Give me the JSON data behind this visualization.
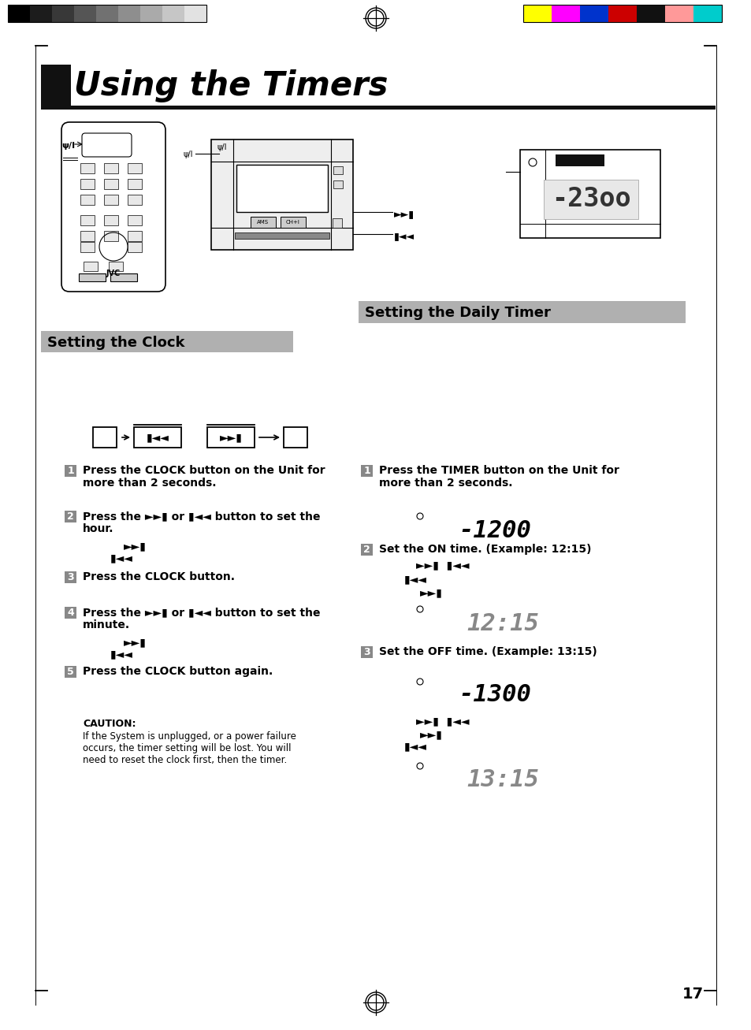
{
  "bg_color": "#ffffff",
  "page_title": "Using the Timers",
  "section1_title": "Setting the Clock",
  "section2_title": "Setting the Daily Timer",
  "page_number": "17",
  "grayscale_bars": [
    "#000000",
    "#1c1c1c",
    "#383838",
    "#555555",
    "#717171",
    "#8e8e8e",
    "#aaaaaa",
    "#c6c6c6",
    "#e2e2e2"
  ],
  "color_bars": [
    "#ffff00",
    "#ff00ff",
    "#0033cc",
    "#cc0000",
    "#111111",
    "#ff9999",
    "#00cccc"
  ],
  "title_bg": "#1a1a1a",
  "section_bg": "#aaaaaa",
  "step_num_bg": "#888888",
  "caution_title": "CAUTION:",
  "caution_text": "If the System is unplugged, or a power failure\noccurs, the timer setting will be lost. You will\nneed to reset the clock first, then the timer.",
  "display_23_00": "-1200",
  "display_12_15": "12:15",
  "display_13_00": "-1300",
  "display_13_15": "13:15"
}
